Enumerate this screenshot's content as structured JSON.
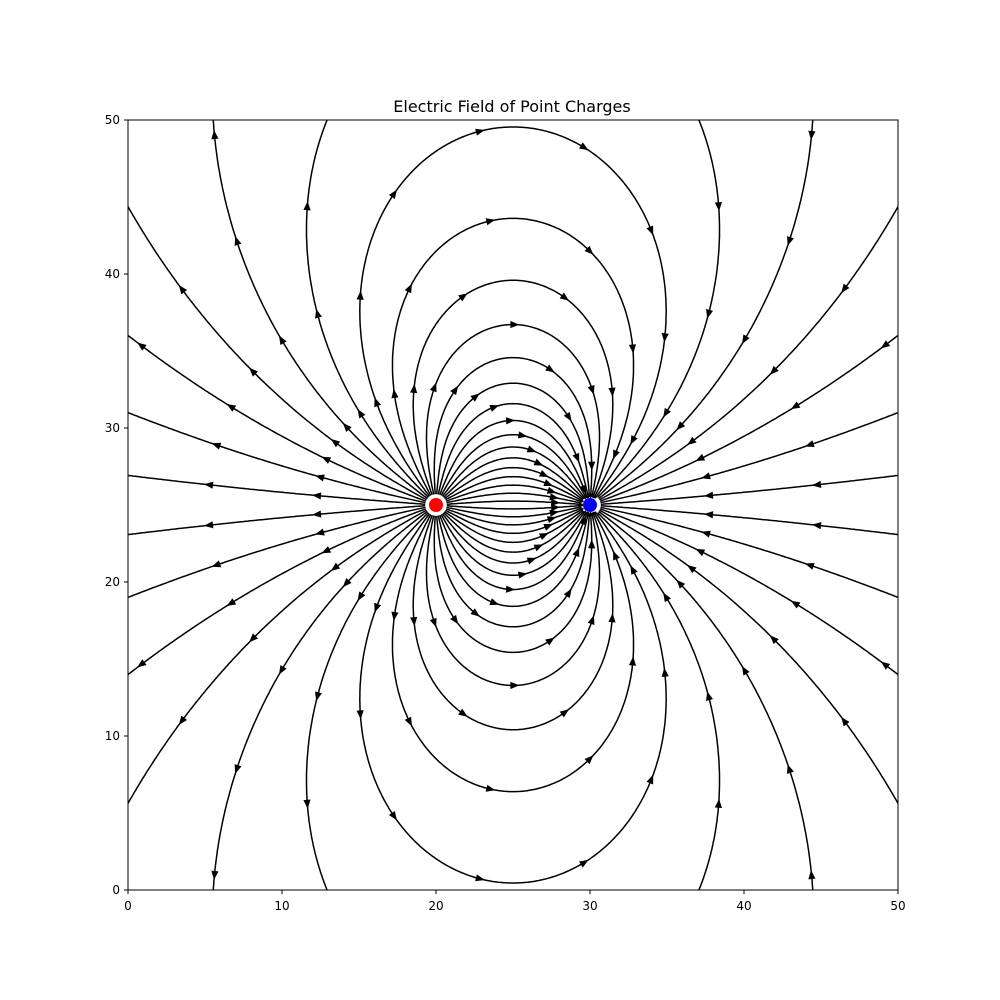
{
  "chart_data": {
    "type": "streamplot",
    "title": "Electric Field of Point Charges",
    "xlabel": "",
    "ylabel": "",
    "xlim": [
      0,
      50
    ],
    "ylim": [
      0,
      50
    ],
    "x_ticks": [
      0,
      10,
      20,
      30,
      40,
      50
    ],
    "y_ticks": [
      0,
      10,
      20,
      30,
      40,
      50
    ],
    "grid": false,
    "charges": [
      {
        "x": 20,
        "y": 25,
        "sign": "positive",
        "color": "#ff0000"
      },
      {
        "x": 30,
        "y": 25,
        "sign": "negative",
        "color": "#0000ff"
      }
    ],
    "line_color": "#000000"
  }
}
